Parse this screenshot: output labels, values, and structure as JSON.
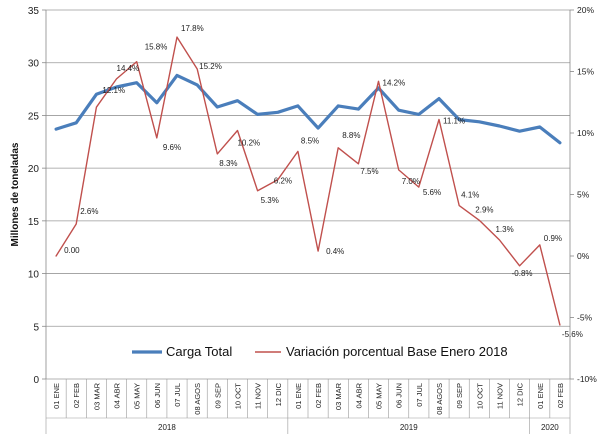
{
  "chart_data": {
    "type": "line",
    "ylabel": "Millones de toneladas",
    "categories": [
      "01 ENE",
      "02 FEB",
      "03 MAR",
      "04 ABR",
      "05 MAY",
      "06 JUN",
      "07 JUL",
      "08 AGOS",
      "09 SEP",
      "10 OCT",
      "11 NOV",
      "12 DIC",
      "01 ENE",
      "02 FEB",
      "03 MAR",
      "04 ABR",
      "05 MAY",
      "06 JUN",
      "07 JUL",
      "08 AGOS",
      "09 SEP",
      "10 OCT",
      "11 NOV",
      "12 DIC",
      "01 ENE",
      "02 FEB"
    ],
    "year_groups": [
      {
        "label": "2018",
        "start": 0,
        "end": 11
      },
      {
        "label": "2019",
        "start": 12,
        "end": 23
      },
      {
        "label": "2020",
        "start": 24,
        "end": 25
      }
    ],
    "ylim_left": [
      0,
      35
    ],
    "yticks_left": [
      "0",
      "5",
      "10",
      "15",
      "20",
      "25",
      "30",
      "35"
    ],
    "ylim_right": [
      -10,
      20
    ],
    "yticks_right": [
      "-10%",
      "-5%",
      "0%",
      "5%",
      "10%",
      "15%",
      "20%"
    ],
    "grid": true,
    "legend_position": "bottom-inside",
    "series": [
      {
        "name": "Carga Total",
        "axis": "left",
        "color": "#4a7ebb",
        "values": [
          23.7,
          24.3,
          27.0,
          27.7,
          28.1,
          26.2,
          28.8,
          27.9,
          25.8,
          26.4,
          25.1,
          25.3,
          25.9,
          23.8,
          25.9,
          25.6,
          27.6,
          25.5,
          25.1,
          26.6,
          24.6,
          24.4,
          24.0,
          23.5,
          23.9,
          22.4
        ]
      },
      {
        "name": "Variación porcentual Base Enero 2018",
        "axis": "right",
        "color": "#c0504d",
        "values": [
          0.0,
          2.6,
          12.1,
          14.4,
          15.8,
          9.6,
          17.8,
          15.2,
          8.3,
          10.2,
          5.3,
          6.2,
          8.5,
          0.4,
          8.8,
          7.5,
          14.2,
          7.0,
          5.6,
          11.1,
          4.1,
          2.9,
          1.3,
          -0.8,
          0.9,
          -5.6
        ],
        "data_labels": [
          "0.00",
          "2.6%",
          "12.1%",
          "14.4%",
          "15.8%",
          "9.6%",
          "17.8%",
          "15.2%",
          "8.3%",
          "10.2%",
          "5.3%",
          "6.2%",
          "8.5%",
          "0.4%",
          "8.8%",
          "7.5%",
          "14.2%",
          "7.0%",
          "5.6%",
          "11.1%",
          "4.1%",
          "2.9%",
          "1.3%",
          "-0.8%",
          "0.9%",
          "-5.6%"
        ]
      }
    ]
  }
}
